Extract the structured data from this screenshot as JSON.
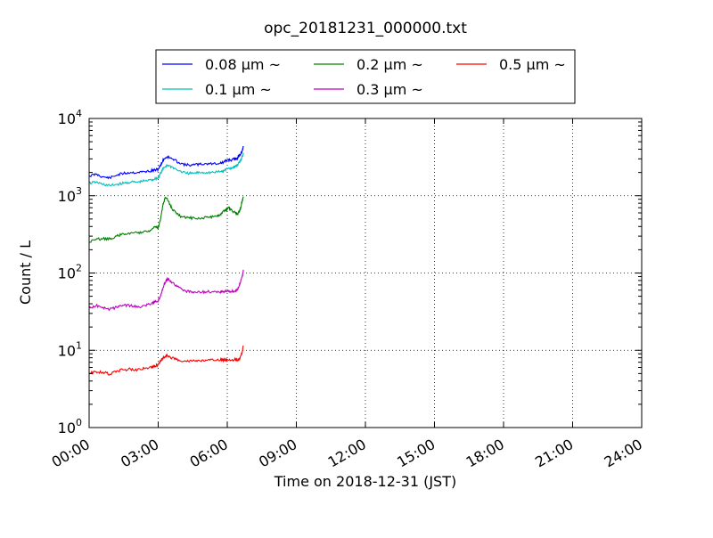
{
  "chart_data": {
    "type": "line",
    "title": "opc_20181231_000000.txt",
    "xlabel": "Time on 2018-12-31 (JST)",
    "ylabel": "Count / L",
    "x_unit": "hours",
    "xlim": [
      0,
      24
    ],
    "x_ticks": [
      {
        "hour": 0,
        "label": "00:00"
      },
      {
        "hour": 3,
        "label": "03:00"
      },
      {
        "hour": 6,
        "label": "06:00"
      },
      {
        "hour": 9,
        "label": "09:00"
      },
      {
        "hour": 12,
        "label": "12:00"
      },
      {
        "hour": 15,
        "label": "15:00"
      },
      {
        "hour": 18,
        "label": "18:00"
      },
      {
        "hour": 21,
        "label": "21:00"
      },
      {
        "hour": 24,
        "label": "24:00"
      }
    ],
    "y_scale": "log",
    "ylim": [
      1,
      10000
    ],
    "y_ticks": [
      {
        "value": 1,
        "base": "10",
        "exp": "0"
      },
      {
        "value": 10,
        "base": "10",
        "exp": "1"
      },
      {
        "value": 100,
        "base": "10",
        "exp": "2"
      },
      {
        "value": 1000,
        "base": "10",
        "exp": "3"
      },
      {
        "value": 10000,
        "base": "10",
        "exp": "4"
      }
    ],
    "grid": true,
    "legend_position": "top-center",
    "series": [
      {
        "name": "0.08 μm ~",
        "color": "#0000ff",
        "x": [
          0.0,
          0.3,
          0.6,
          0.9,
          1.2,
          1.5,
          1.8,
          2.1,
          2.4,
          2.7,
          2.85,
          3.0,
          3.1,
          3.25,
          3.4,
          3.6,
          3.9,
          4.2,
          4.5,
          4.8,
          5.1,
          5.4,
          5.7,
          5.85,
          6.0,
          6.2,
          6.35,
          6.45,
          6.55,
          6.65,
          6.7
        ],
        "y": [
          1800,
          1900,
          1750,
          1700,
          1850,
          1950,
          2000,
          2000,
          2050,
          2100,
          2150,
          2200,
          2500,
          3000,
          3200,
          3000,
          2700,
          2500,
          2500,
          2550,
          2600,
          2600,
          2650,
          2700,
          2900,
          2900,
          3000,
          3100,
          3400,
          3800,
          4300
        ]
      },
      {
        "name": "0.1 μm ~",
        "color": "#00bfbf",
        "x": [
          0.0,
          0.3,
          0.6,
          0.9,
          1.2,
          1.5,
          1.8,
          2.1,
          2.4,
          2.7,
          2.85,
          3.0,
          3.1,
          3.25,
          3.4,
          3.6,
          3.9,
          4.2,
          4.5,
          4.8,
          5.1,
          5.4,
          5.7,
          5.85,
          6.0,
          6.2,
          6.35,
          6.45,
          6.55,
          6.65,
          6.7
        ],
        "y": [
          1450,
          1500,
          1400,
          1350,
          1400,
          1450,
          1500,
          1500,
          1550,
          1600,
          1650,
          1700,
          1950,
          2300,
          2500,
          2350,
          2100,
          1950,
          1950,
          2000,
          2000,
          2000,
          2050,
          2100,
          2250,
          2300,
          2400,
          2500,
          2800,
          3200,
          3600
        ]
      },
      {
        "name": "0.2 μm ~",
        "color": "#008000",
        "x": [
          0.0,
          0.3,
          0.6,
          0.9,
          1.2,
          1.5,
          1.8,
          2.1,
          2.4,
          2.7,
          2.85,
          3.0,
          3.1,
          3.2,
          3.3,
          3.45,
          3.6,
          3.8,
          4.0,
          4.3,
          4.6,
          4.9,
          5.2,
          5.5,
          5.7,
          5.9,
          6.05,
          6.2,
          6.35,
          6.45,
          6.55,
          6.65,
          6.7
        ],
        "y": [
          250,
          270,
          280,
          275,
          300,
          320,
          330,
          330,
          350,
          360,
          400,
          380,
          500,
          750,
          950,
          850,
          680,
          580,
          540,
          520,
          510,
          520,
          530,
          540,
          580,
          650,
          700,
          650,
          600,
          580,
          650,
          850,
          950
        ]
      },
      {
        "name": "0.3 μm ~",
        "color": "#bf00bf",
        "x": [
          0.0,
          0.3,
          0.6,
          0.9,
          1.2,
          1.5,
          1.8,
          2.1,
          2.4,
          2.7,
          2.85,
          3.0,
          3.1,
          3.25,
          3.4,
          3.6,
          3.9,
          4.2,
          4.5,
          4.8,
          5.1,
          5.4,
          5.7,
          5.85,
          6.0,
          6.2,
          6.35,
          6.45,
          6.55,
          6.65,
          6.7
        ],
        "y": [
          35,
          38,
          36,
          34,
          36,
          38,
          38,
          36,
          38,
          40,
          42,
          44,
          50,
          70,
          85,
          75,
          65,
          58,
          57,
          57,
          57,
          57,
          57,
          58,
          58,
          58,
          58,
          62,
          72,
          90,
          110
        ]
      },
      {
        "name": "0.5 μm ~",
        "color": "#ff0000",
        "x": [
          0.0,
          0.3,
          0.6,
          0.9,
          1.2,
          1.5,
          1.8,
          2.1,
          2.4,
          2.7,
          2.85,
          3.0,
          3.1,
          3.25,
          3.4,
          3.6,
          3.9,
          4.2,
          4.5,
          4.8,
          5.1,
          5.4,
          5.7,
          5.85,
          6.0,
          6.2,
          6.35,
          6.45,
          6.55,
          6.65,
          6.7
        ],
        "y": [
          5.0,
          5.3,
          5.2,
          4.9,
          5.4,
          5.6,
          5.7,
          5.6,
          5.8,
          6.0,
          6.3,
          6.5,
          7.2,
          8.2,
          8.5,
          8.0,
          7.5,
          7.2,
          7.3,
          7.3,
          7.4,
          7.4,
          7.5,
          7.5,
          7.6,
          7.5,
          7.6,
          7.4,
          7.8,
          9.5,
          11.5
        ]
      }
    ]
  }
}
